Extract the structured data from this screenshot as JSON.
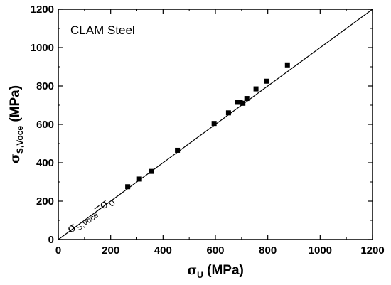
{
  "chart_data": {
    "type": "scatter",
    "title": "",
    "annotation": "CLAM Steel",
    "xlabel": {
      "symbol": "σ",
      "sub": "U",
      "unit": " (MPa)"
    },
    "ylabel": {
      "symbol": "σ",
      "sub": "S,Voce",
      "unit": " (MPa)"
    },
    "xlim": [
      0,
      1200
    ],
    "ylim": [
      0,
      1200
    ],
    "xticks": [
      0,
      200,
      400,
      600,
      800,
      1000,
      1200
    ],
    "yticks": [
      0,
      200,
      400,
      600,
      800,
      1000,
      1200
    ],
    "grid": false,
    "marker": "square",
    "marker_color": "#000000",
    "series": [
      {
        "x": [
          265,
          310,
          355,
          455,
          595,
          650,
          685,
          695,
          705,
          720,
          755,
          795,
          875
        ],
        "y": [
          275,
          315,
          355,
          465,
          605,
          660,
          715,
          715,
          710,
          735,
          785,
          825,
          910
        ]
      }
    ],
    "reference_line": {
      "from": [
        0,
        0
      ],
      "to": [
        1200,
        1200
      ],
      "label": {
        "sym1": "σ",
        "sub1": "S,Voce",
        "eq": "=",
        "sym2": "σ",
        "sub2": "U"
      }
    }
  }
}
